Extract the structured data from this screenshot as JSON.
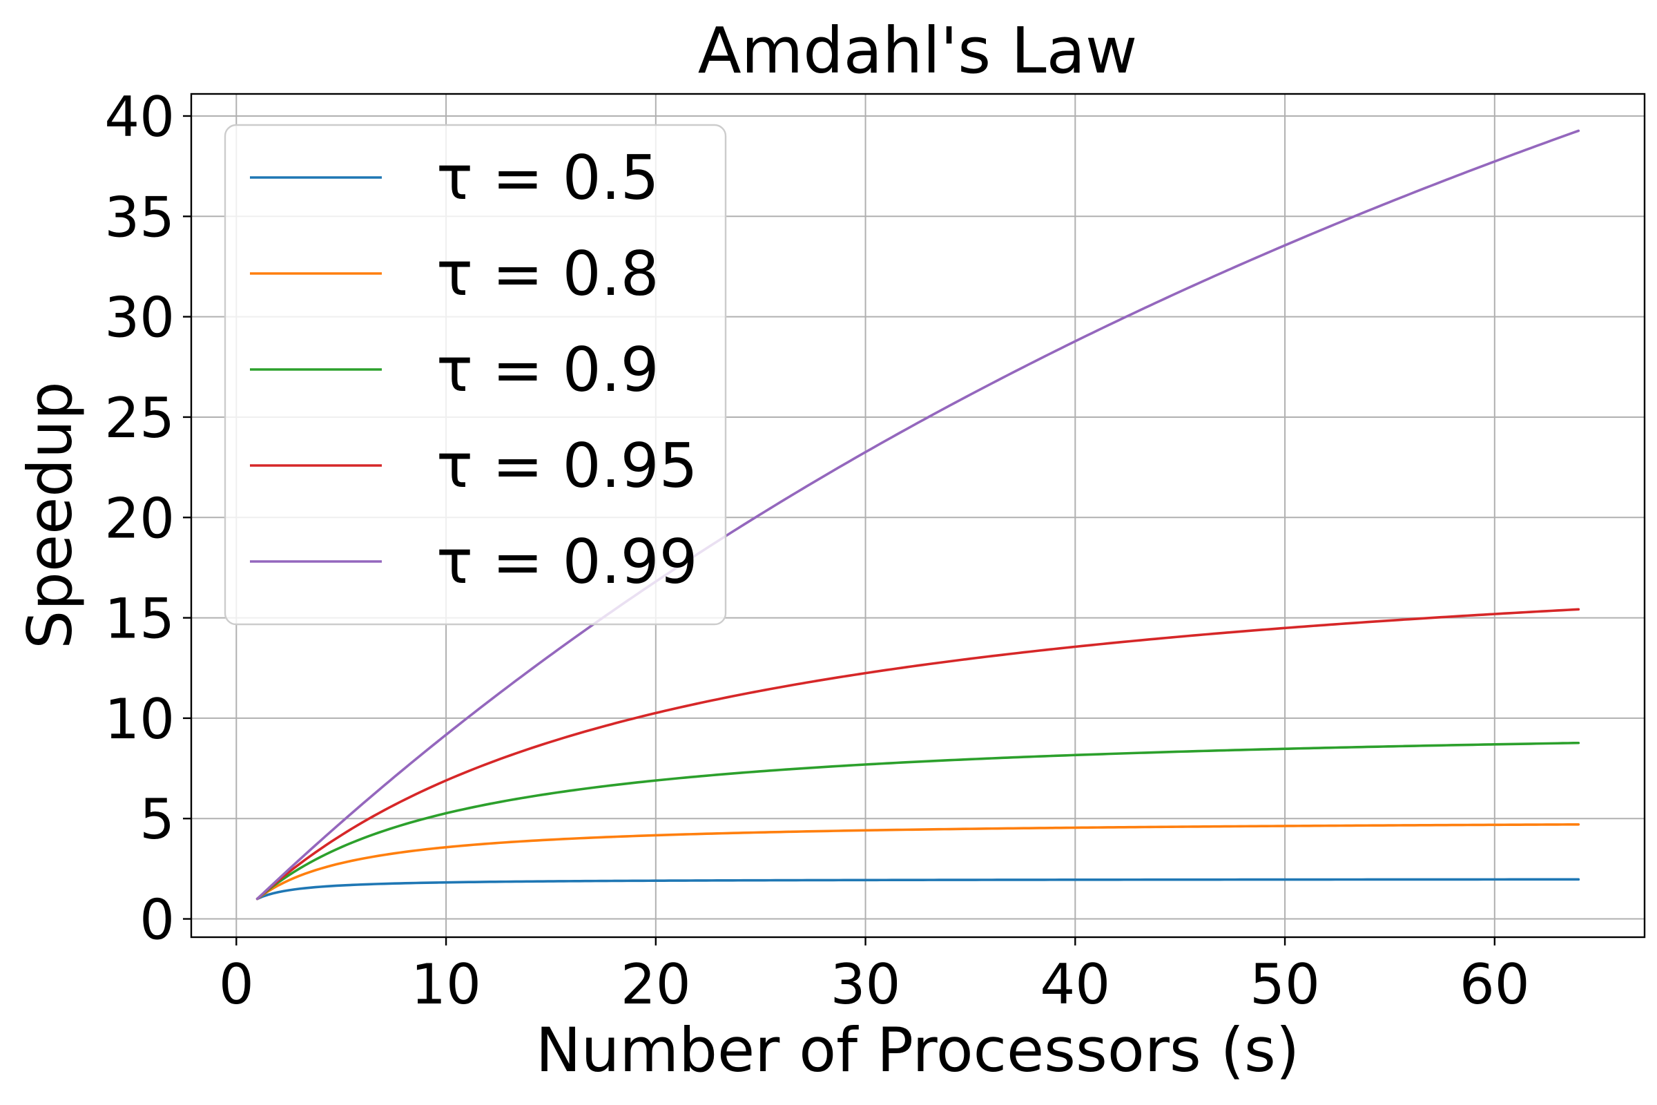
{
  "chart_data": {
    "type": "line",
    "title": "Amdahl's Law",
    "xlabel": "Number of Processors (s)",
    "ylabel": "Speedup",
    "xlim": [
      -2.15,
      67.15
    ],
    "ylim": [
      -0.91,
      41.1
    ],
    "xticks": [
      0,
      10,
      20,
      30,
      40,
      50,
      60
    ],
    "yticks": [
      0,
      5,
      10,
      15,
      20,
      25,
      30,
      35,
      40
    ],
    "grid": true,
    "legend_position": "upper-left",
    "x_domain": [
      1,
      64
    ],
    "formula_note_hidden": "",
    "series": [
      {
        "name": "τ = 0.5",
        "tau": 0.5,
        "color": "#1f77b4",
        "end_value": 1.97
      },
      {
        "name": "τ = 0.8",
        "tau": 0.8,
        "color": "#ff7f0e",
        "end_value": 4.71
      },
      {
        "name": "τ = 0.9",
        "tau": 0.9,
        "color": "#2ca02c",
        "end_value": 8.77
      },
      {
        "name": "τ = 0.95",
        "tau": 0.95,
        "color": "#d62728",
        "end_value": 15.42
      },
      {
        "name": "τ = 0.99",
        "tau": 0.99,
        "color": "#9467bd",
        "end_value": 39.26
      }
    ]
  }
}
